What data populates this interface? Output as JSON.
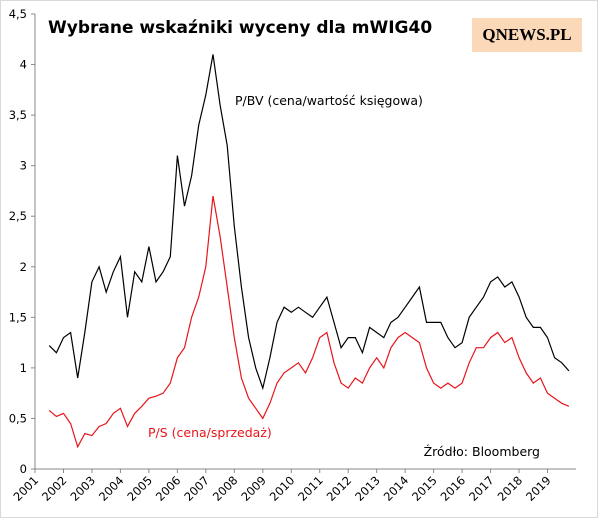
{
  "chart_data": {
    "type": "line",
    "title": "Wybrane wskaźniki wyceny dla mWIG40",
    "logo": "QNEWS.PL",
    "annotation": "Źródło: Bloomberg",
    "xlim": [
      2001,
      2020
    ],
    "xticks": [
      2001,
      2002,
      2003,
      2004,
      2005,
      2006,
      2007,
      2008,
      2009,
      2010,
      2011,
      2012,
      2013,
      2014,
      2015,
      2016,
      2017,
      2018,
      2019
    ],
    "ylim": [
      0,
      4.5
    ],
    "yticks": [
      0,
      {
        "value": 0.5,
        "label": "0,5"
      },
      1,
      {
        "value": 1.5,
        "label": "1,5"
      },
      2,
      {
        "value": 2.5,
        "label": "2,5"
      },
      3,
      {
        "value": 3.5,
        "label": "3,5"
      },
      4,
      {
        "value": 4.5,
        "label": "4,5"
      }
    ],
    "x": [
      2001.5,
      2001.75,
      2002,
      2002.25,
      2002.5,
      2002.75,
      2003,
      2003.25,
      2003.5,
      2003.75,
      2004,
      2004.25,
      2004.5,
      2004.75,
      2005,
      2005.25,
      2005.5,
      2005.75,
      2006,
      2006.25,
      2006.5,
      2006.75,
      2007,
      2007.25,
      2007.5,
      2007.75,
      2008,
      2008.25,
      2008.5,
      2008.75,
      2009,
      2009.25,
      2009.5,
      2009.75,
      2010,
      2010.25,
      2010.5,
      2010.75,
      2011,
      2011.25,
      2011.5,
      2011.75,
      2012,
      2012.25,
      2012.5,
      2012.75,
      2013,
      2013.25,
      2013.5,
      2013.75,
      2014,
      2014.25,
      2014.5,
      2014.75,
      2015,
      2015.25,
      2015.5,
      2015.75,
      2016,
      2016.25,
      2016.5,
      2016.75,
      2017,
      2017.25,
      2017.5,
      2017.75,
      2018,
      2018.25,
      2018.5,
      2018.75,
      2019,
      2019.25,
      2019.5,
      2019.75
    ],
    "series": [
      {
        "name": "P/BV (cena/wartość księgowa)",
        "color": "#000000",
        "values": [
          1.22,
          1.15,
          1.3,
          1.35,
          0.9,
          1.35,
          1.85,
          2.0,
          1.75,
          1.95,
          2.1,
          1.5,
          1.95,
          1.85,
          2.2,
          1.85,
          1.95,
          2.1,
          3.1,
          2.6,
          2.9,
          3.4,
          3.7,
          4.1,
          3.6,
          3.2,
          2.4,
          1.8,
          1.3,
          1.0,
          0.8,
          1.1,
          1.45,
          1.6,
          1.55,
          1.6,
          1.55,
          1.5,
          1.6,
          1.7,
          1.45,
          1.2,
          1.3,
          1.3,
          1.15,
          1.4,
          1.35,
          1.3,
          1.45,
          1.5,
          1.6,
          1.7,
          1.8,
          1.45,
          1.45,
          1.45,
          1.3,
          1.2,
          1.25,
          1.5,
          1.6,
          1.7,
          1.85,
          1.9,
          1.8,
          1.85,
          1.7,
          1.5,
          1.4,
          1.4,
          1.3,
          1.1,
          1.05,
          0.97
        ]
      },
      {
        "name": "P/S (cena/sprzedaż)",
        "color": "#e8151b",
        "values": [
          0.58,
          0.52,
          0.55,
          0.45,
          0.22,
          0.35,
          0.33,
          0.42,
          0.45,
          0.55,
          0.6,
          0.42,
          0.55,
          0.62,
          0.7,
          0.72,
          0.75,
          0.85,
          1.1,
          1.2,
          1.5,
          1.7,
          2.0,
          2.7,
          2.3,
          1.8,
          1.3,
          0.9,
          0.7,
          0.6,
          0.5,
          0.65,
          0.85,
          0.95,
          1.0,
          1.05,
          0.95,
          1.1,
          1.3,
          1.35,
          1.05,
          0.85,
          0.8,
          0.9,
          0.85,
          1.0,
          1.1,
          1.0,
          1.2,
          1.3,
          1.35,
          1.3,
          1.25,
          1.0,
          0.85,
          0.8,
          0.85,
          0.8,
          0.85,
          1.05,
          1.2,
          1.2,
          1.3,
          1.35,
          1.25,
          1.3,
          1.1,
          0.95,
          0.85,
          0.9,
          0.75,
          0.7,
          0.65,
          0.62
        ]
      }
    ]
  }
}
